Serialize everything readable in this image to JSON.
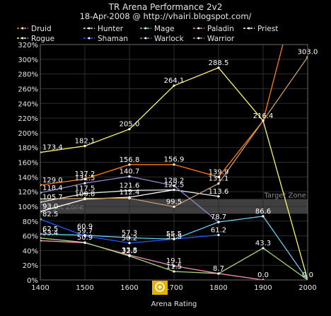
{
  "chart_data": {
    "type": "line",
    "title": "TR Arena Performance 2v2",
    "subtitle": "18-Apr-2008 @ http://vhairi.blogspot.com/",
    "xlabel": "Arena Rating",
    "ylabel": "",
    "x": [
      1400,
      1500,
      1600,
      1700,
      1800,
      1900,
      2000
    ],
    "xlim": [
      1400,
      2000
    ],
    "ylim": [
      0,
      320
    ],
    "y_ticks": [
      "0%",
      "20%",
      "40%",
      "60%",
      "80%",
      "100%",
      "120%",
      "140%",
      "160%",
      "180%",
      "200%",
      "220%",
      "240%",
      "260%",
      "280%",
      "300%",
      "320%"
    ],
    "grid": true,
    "legend_position": "top",
    "target_zone_label": "Target Zone",
    "target_zone": [
      90,
      110
    ],
    "series": [
      {
        "name": "Druid",
        "color": "#ff7d0a",
        "values": [
          129.0,
          137.2,
          156.8,
          156.9,
          139.9,
          216.4,
          450
        ]
      },
      {
        "name": "Hunter",
        "color": "#e8e8e8",
        "values": [
          105.7,
          117.5,
          121.6,
          122.5,
          113.6,
          null,
          null
        ]
      },
      {
        "name": "Mage",
        "color": "#69ccf0",
        "values": [
          62.5,
          60.9,
          57.3,
          55.5,
          78.7,
          86.6,
          0.0
        ]
      },
      {
        "name": "Paladin",
        "color": "#f58cba",
        "values": [
          53.4,
          50.5,
          33.8,
          19.1,
          8.7,
          0.0,
          null
        ]
      },
      {
        "name": "Priest",
        "color": "#ffffff",
        "values": [
          93.0,
          109.8,
          112.4,
          122.5,
          null,
          null,
          null
        ]
      },
      {
        "name": "Rogue",
        "color": "#fff569",
        "values": [
          173.4,
          182.1,
          205.0,
          264.1,
          288.5,
          216.4,
          0.0
        ]
      },
      {
        "name": "Shaman",
        "color": "#2459ff",
        "values": [
          82.5,
          59.7,
          50.2,
          55.5,
          61.2,
          null,
          null
        ]
      },
      {
        "name": "Warlock",
        "color": "#9482c9",
        "values": [
          118.4,
          131.5,
          140.7,
          128.2,
          78.7,
          null,
          null
        ]
      },
      {
        "name": "Warrior",
        "color": "#c79c6e",
        "values": [
          110.2,
          111.0,
          111.0,
          99.5,
          131.1,
          216.4,
          303.0
        ]
      }
    ],
    "extra_series": [
      {
        "name": "",
        "color": "#abd473",
        "values": [
          57.0,
          50.9,
          32.5,
          11.5,
          8.7,
          43.3,
          0.0
        ]
      }
    ],
    "data_labels": [
      {
        "x": 1400,
        "y": 173.4,
        "text": "173.4"
      },
      {
        "x": 1500,
        "y": 182.1,
        "text": "182.1"
      },
      {
        "x": 1600,
        "y": 205.0,
        "text": "205.0"
      },
      {
        "x": 1700,
        "y": 264.1,
        "text": "264.1"
      },
      {
        "x": 1800,
        "y": 288.5,
        "text": "288.5"
      },
      {
        "x": 1900,
        "y": 216.4,
        "text": "216.4"
      },
      {
        "x": 2000,
        "y": 303.0,
        "text": "303.0"
      },
      {
        "x": 1400,
        "y": 129.0,
        "text": "129.0"
      },
      {
        "x": 1500,
        "y": 137.2,
        "text": "137.2"
      },
      {
        "x": 1600,
        "y": 156.8,
        "text": "156.8"
      },
      {
        "x": 1700,
        "y": 156.9,
        "text": "156.9"
      },
      {
        "x": 1800,
        "y": 139.9,
        "text": "139.9"
      },
      {
        "x": 1400,
        "y": 118.4,
        "text": "118.4"
      },
      {
        "x": 1500,
        "y": 131.5,
        "text": "131.5"
      },
      {
        "x": 1600,
        "y": 140.7,
        "text": "140.7"
      },
      {
        "x": 1700,
        "y": 128.2,
        "text": "128.2"
      },
      {
        "x": 1800,
        "y": 131.1,
        "text": "131.1"
      },
      {
        "x": 1400,
        "y": 105.7,
        "text": "105.7"
      },
      {
        "x": 1500,
        "y": 117.5,
        "text": "117.5"
      },
      {
        "x": 1600,
        "y": 121.6,
        "text": "121.6"
      },
      {
        "x": 1700,
        "y": 122.5,
        "text": "122.5"
      },
      {
        "x": 1800,
        "y": 113.6,
        "text": "113.6"
      },
      {
        "x": 1500,
        "y": 109.8,
        "text": "109.8"
      },
      {
        "x": 1600,
        "y": 112.4,
        "text": "112.4"
      },
      {
        "x": 1700,
        "y": 99.5,
        "text": "99.5"
      },
      {
        "x": 1400,
        "y": 93.0,
        "text": "93.0"
      },
      {
        "x": 1400,
        "y": 82.5,
        "text": "82.5"
      },
      {
        "x": 1800,
        "y": 78.7,
        "text": "78.7"
      },
      {
        "x": 1900,
        "y": 86.6,
        "text": "86.6"
      },
      {
        "x": 1400,
        "y": 62.5,
        "text": "62.5"
      },
      {
        "x": 1400,
        "y": 57.0,
        "text": "53.4"
      },
      {
        "x": 1500,
        "y": 66.0,
        "text": "60.9"
      },
      {
        "x": 1500,
        "y": 59.7,
        "text": "59.7"
      },
      {
        "x": 1500,
        "y": 50.9,
        "text": "50.9"
      },
      {
        "x": 1600,
        "y": 57.3,
        "text": "57.3"
      },
      {
        "x": 1600,
        "y": 50.2,
        "text": "50.2"
      },
      {
        "x": 1600,
        "y": 33.8,
        "text": "33.8"
      },
      {
        "x": 1600,
        "y": 32.5,
        "text": "32.5"
      },
      {
        "x": 1700,
        "y": 55.5,
        "text": "55.5"
      },
      {
        "x": 1700,
        "y": 52.0,
        "text": "55.5"
      },
      {
        "x": 1800,
        "y": 61.2,
        "text": "61.2"
      },
      {
        "x": 1700,
        "y": 19.1,
        "text": "19.1"
      },
      {
        "x": 1700,
        "y": 11.5,
        "text": "11.5"
      },
      {
        "x": 1800,
        "y": 8.7,
        "text": "8.7"
      },
      {
        "x": 1900,
        "y": 43.3,
        "text": "43.3"
      },
      {
        "x": 1900,
        "y": 0.0,
        "text": "0.0"
      },
      {
        "x": 2000,
        "y": 0.0,
        "text": "0.0"
      }
    ]
  }
}
